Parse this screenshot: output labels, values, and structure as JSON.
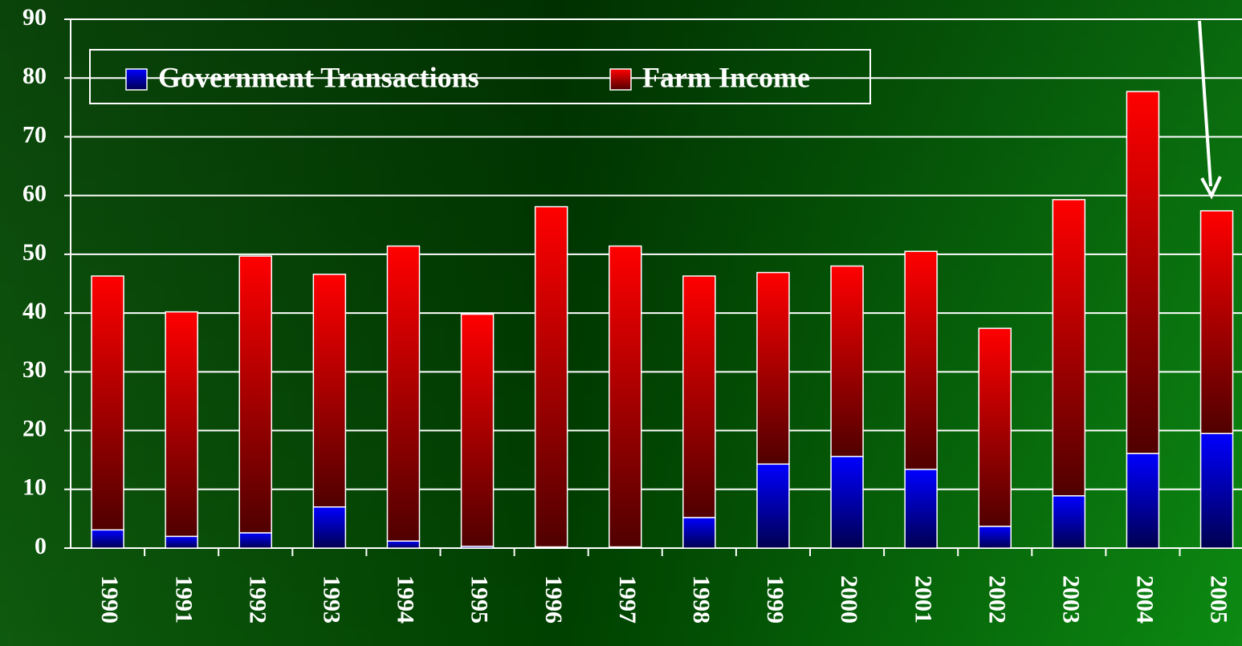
{
  "chart_data": {
    "type": "stacked_bar",
    "categories": [
      "1990",
      "1991",
      "1992",
      "1993",
      "1994",
      "1995",
      "1996",
      "1997",
      "1998",
      "1999",
      "2000",
      "2001",
      "2002",
      "2003",
      "2004",
      "2005"
    ],
    "series": [
      {
        "name": "Government Transactions",
        "color": "#0000ff",
        "values": [
          3.1,
          2.0,
          2.6,
          7.0,
          1.2,
          0.3,
          0.2,
          0.2,
          5.2,
          14.3,
          15.6,
          13.4,
          3.7,
          8.9,
          16.1,
          19.5
        ]
      },
      {
        "name": "Farm Income",
        "color": "#ff0000",
        "values": [
          43.2,
          38.2,
          47.1,
          39.6,
          50.2,
          39.5,
          57.9,
          51.2,
          41.1,
          32.6,
          32.4,
          37.1,
          33.7,
          50.4,
          61.6,
          37.9
        ]
      }
    ],
    "ylim": [
      0,
      90
    ],
    "yticks": [
      0,
      10,
      20,
      30,
      40,
      50,
      60,
      70,
      80,
      90
    ],
    "grid": true
  }
}
